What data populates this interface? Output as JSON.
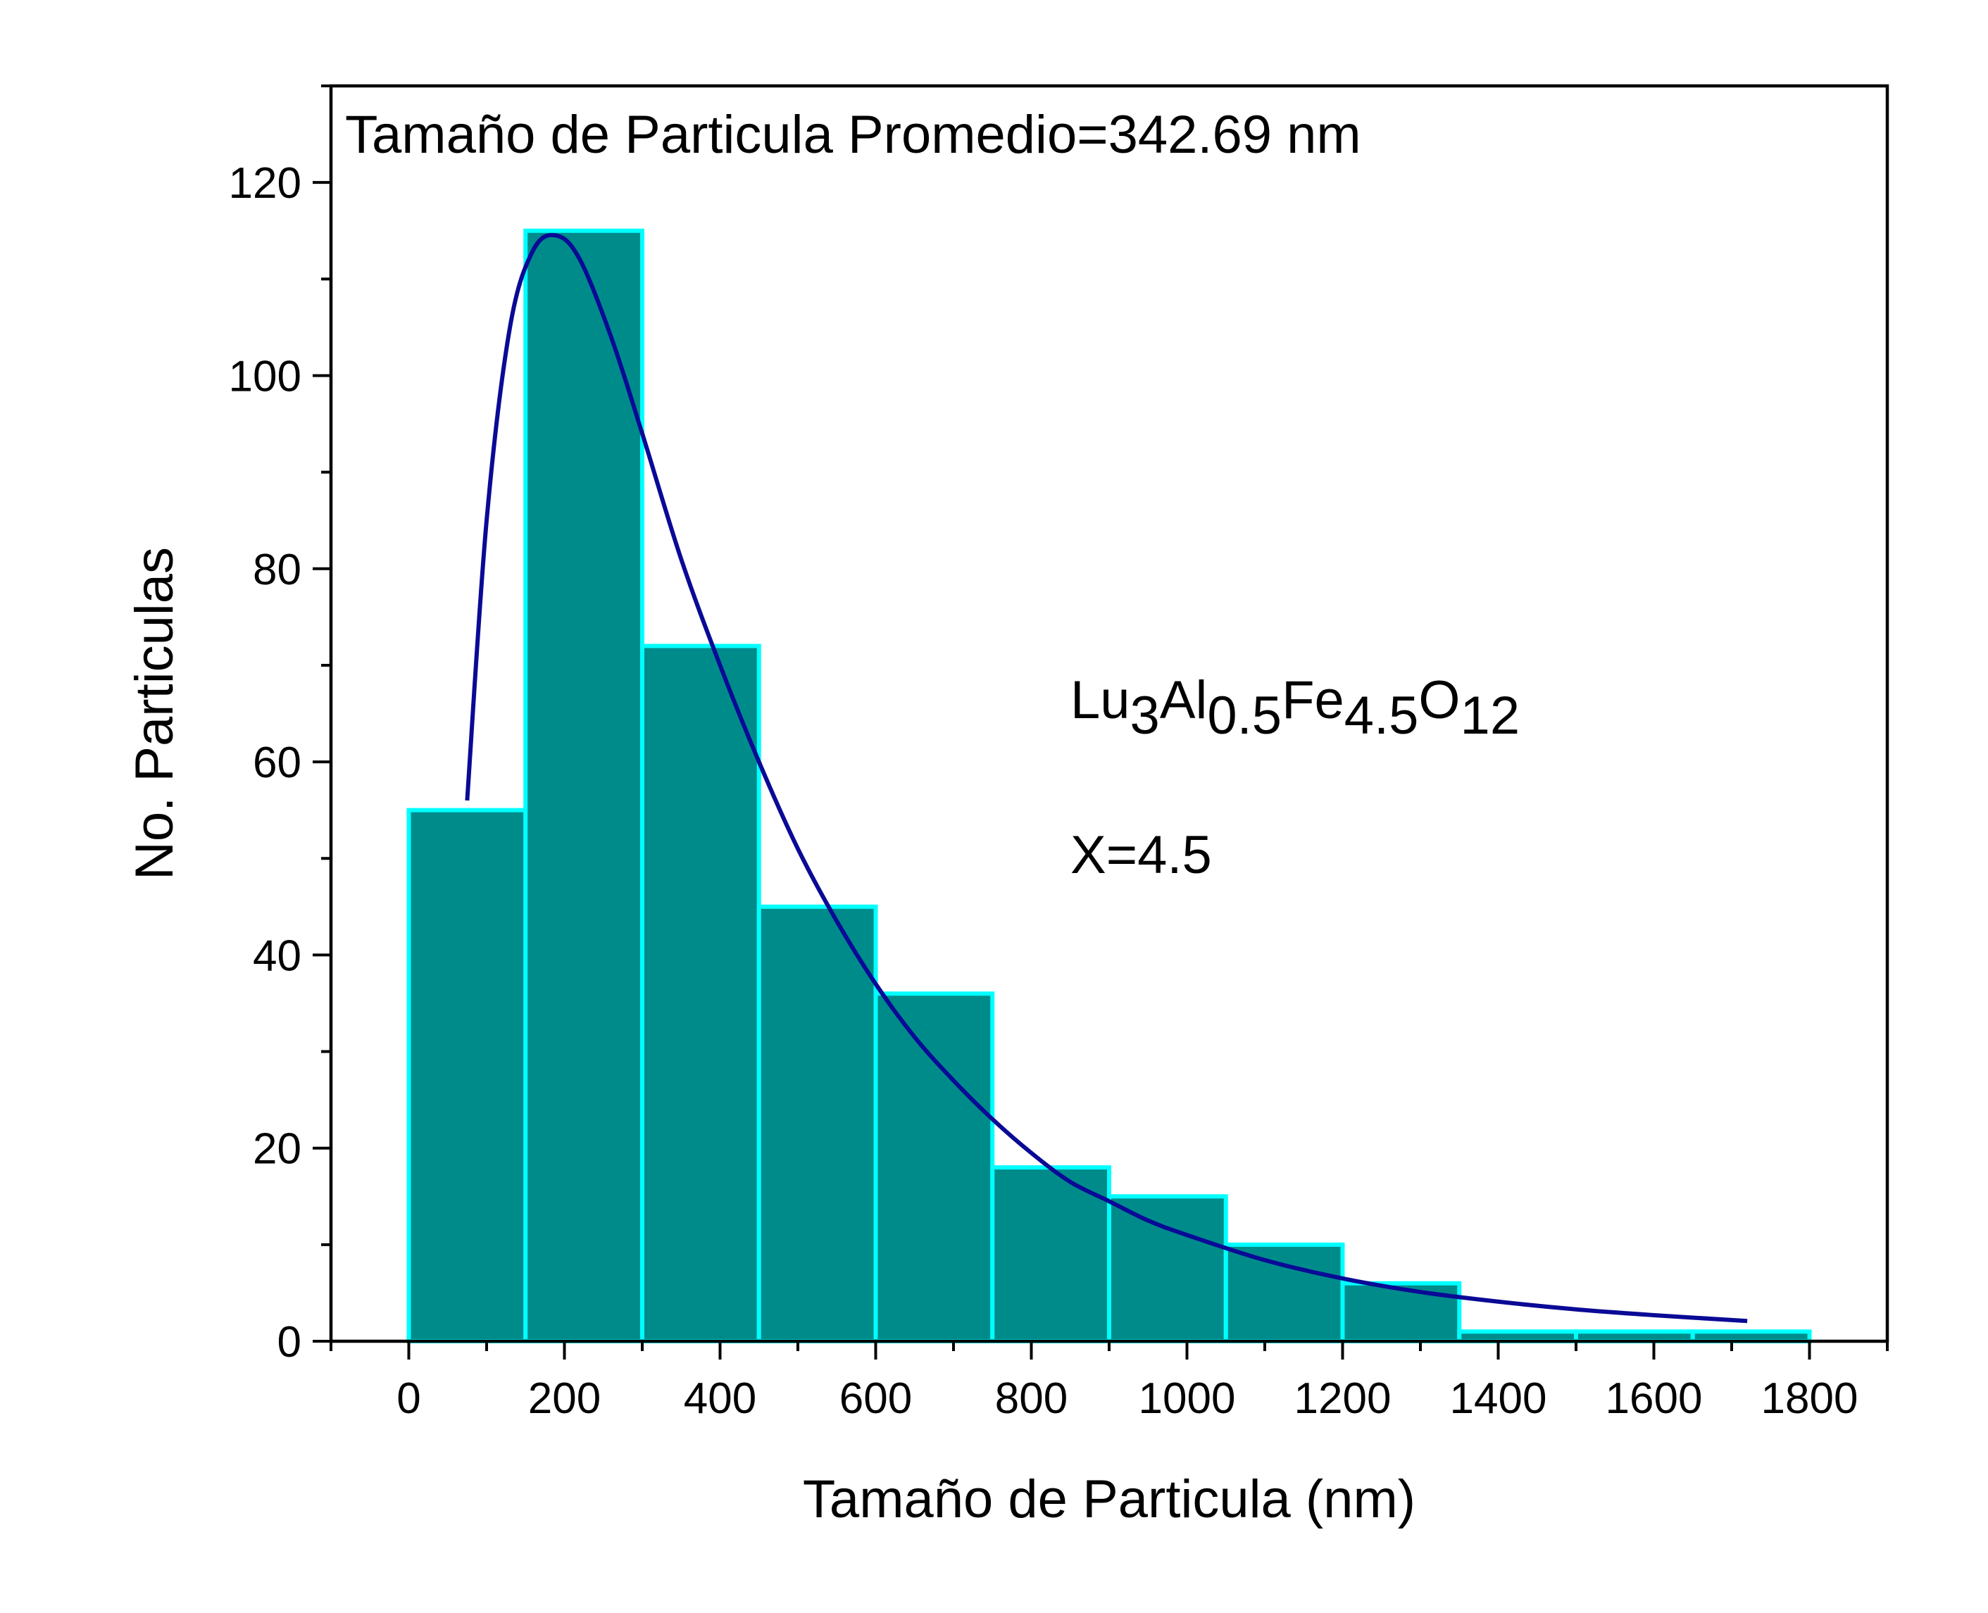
{
  "chart_data": {
    "type": "bar",
    "title": "",
    "xlabel": "Tamaño de Particula (nm)",
    "ylabel": "No. Particulas",
    "xlim": [
      -100,
      1900
    ],
    "ylim": [
      0,
      130
    ],
    "xticks": [
      0,
      200,
      400,
      600,
      800,
      1000,
      1200,
      1400,
      1600,
      1800
    ],
    "yticks": [
      0,
      20,
      40,
      60,
      80,
      100,
      120
    ],
    "bin_width": 150,
    "bins": [
      {
        "start": 0,
        "end": 150,
        "count": 55
      },
      {
        "start": 150,
        "end": 300,
        "count": 115
      },
      {
        "start": 300,
        "end": 450,
        "count": 72
      },
      {
        "start": 450,
        "end": 600,
        "count": 45
      },
      {
        "start": 600,
        "end": 750,
        "count": 36
      },
      {
        "start": 750,
        "end": 900,
        "count": 18
      },
      {
        "start": 900,
        "end": 1050,
        "count": 15
      },
      {
        "start": 1050,
        "end": 1200,
        "count": 10
      },
      {
        "start": 1200,
        "end": 1350,
        "count": 6
      },
      {
        "start": 1350,
        "end": 1500,
        "count": 1
      },
      {
        "start": 1500,
        "end": 1650,
        "count": 1
      },
      {
        "start": 1650,
        "end": 1800,
        "count": 1
      }
    ],
    "fit_curve": {
      "type": "lognormal",
      "x": [
        75,
        100,
        130,
        160,
        190,
        220,
        260,
        300,
        350,
        400,
        450,
        500,
        550,
        600,
        650,
        700,
        750,
        800,
        850,
        900,
        950,
        1000,
        1100,
        1200,
        1300,
        1400,
        1500,
        1600,
        1720
      ],
      "y": [
        56,
        85,
        105,
        113,
        114.5,
        112,
        104,
        94,
        81,
        70,
        60,
        51,
        43.5,
        37,
        31.5,
        27,
        23,
        19.5,
        16.5,
        14.5,
        12.5,
        11,
        8.4,
        6.5,
        5.1,
        4.1,
        3.3,
        2.7,
        2.1
      ]
    },
    "colors": {
      "bar_fill": "#008b8b",
      "bar_edge": "#00ffff",
      "curve": "#0a0a96",
      "axes": "#000000"
    },
    "annotations": {
      "average": "Tamaño de Particula Promedio=342.69 nm",
      "formula": {
        "parts": [
          {
            "text": "Lu",
            "sub": false
          },
          {
            "text": "3",
            "sub": true
          },
          {
            "text": "Al",
            "sub": false
          },
          {
            "text": "0.5",
            "sub": true
          },
          {
            "text": "Fe",
            "sub": false
          },
          {
            "text": "4.5",
            "sub": true
          },
          {
            "text": "O",
            "sub": false
          },
          {
            "text": "12",
            "sub": true
          }
        ]
      },
      "x_value": "X=4.5"
    },
    "legend": "none",
    "grid": false
  }
}
